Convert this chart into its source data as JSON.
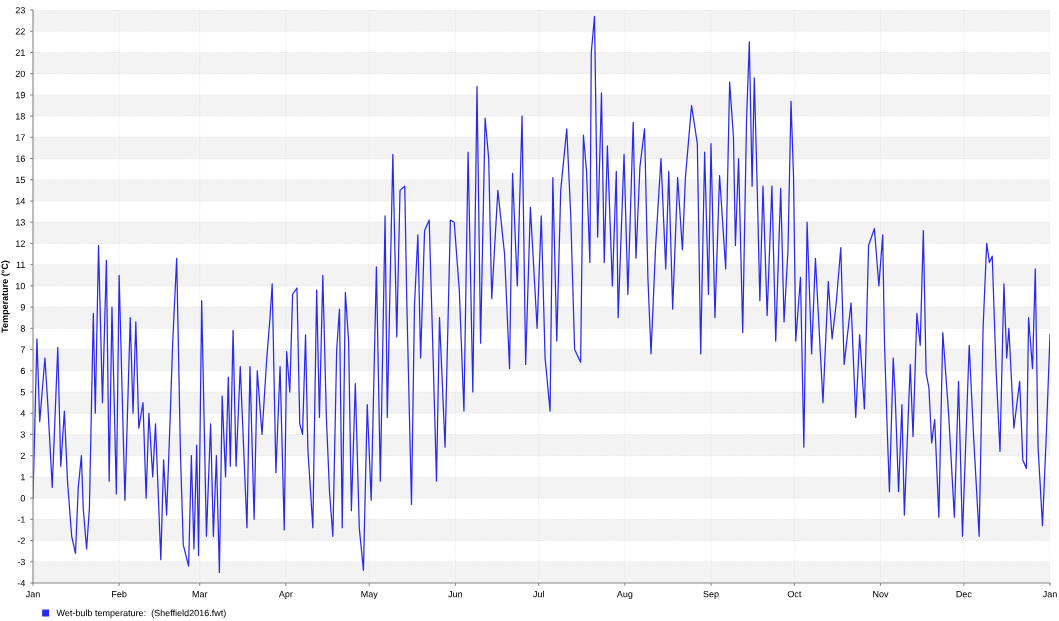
{
  "chart_data": {
    "type": "line",
    "ylabel": "Temperature (°C)",
    "xlim": [
      "2016-01-01",
      "2017-01-01"
    ],
    "xticks": [
      {
        "value": "2016-01-01",
        "label": "Jan"
      },
      {
        "value": "2016-02-01",
        "label": "Feb"
      },
      {
        "value": "2016-03-01",
        "label": "Mar"
      },
      {
        "value": "2016-04-01",
        "label": "Apr"
      },
      {
        "value": "2016-05-01",
        "label": "May"
      },
      {
        "value": "2016-06-01",
        "label": "Jun"
      },
      {
        "value": "2016-07-01",
        "label": "Jul"
      },
      {
        "value": "2016-08-01",
        "label": "Aug"
      },
      {
        "value": "2016-09-01",
        "label": "Sep"
      },
      {
        "value": "2016-10-01",
        "label": "Oct"
      },
      {
        "value": "2016-11-01",
        "label": "Nov"
      },
      {
        "value": "2016-12-01",
        "label": "Dec"
      },
      {
        "value": "2017-01-01",
        "label": "Jan"
      }
    ],
    "ylim": [
      -4,
      23
    ],
    "yticks": [
      -4,
      -3,
      -2,
      -1,
      0,
      1,
      2,
      3,
      4,
      5,
      6,
      7,
      8,
      9,
      10,
      11,
      12,
      13,
      14,
      15,
      16,
      17,
      18,
      19,
      20,
      21,
      22,
      23
    ],
    "grid": true,
    "legend": "bottom",
    "marker": "none",
    "line_style": "solid",
    "series": [
      {
        "name": "Wet-bulb temperature:  (Sheffield2016.fwt)",
        "color": "#2a2aee",
        "x": [
          "2016-01-01T00:00",
          "2016-01-02T10:00",
          "2016-01-03T10:00",
          "2016-01-05T07:00",
          "2016-01-06T07:00",
          "2016-01-07T22:00",
          "2016-01-09T22:00",
          "2016-01-11T00:00",
          "2016-01-12T07:00",
          "2016-01-13T10:00",
          "2016-01-14T22:00",
          "2016-01-16T07:00",
          "2016-01-17T07:00",
          "2016-01-18T10:00",
          "2016-01-19T02:00",
          "2016-01-20T07:00",
          "2016-01-21T07:00",
          "2016-01-22T17:00",
          "2016-01-23T10:00",
          "2016-01-24T14:00",
          "2016-01-26T00:00",
          "2016-01-27T10:00",
          "2016-01-28T10:00",
          "2016-01-29T10:00",
          "2016-01-31T00:00",
          "2016-02-01T00:00",
          "2016-02-03T02:00",
          "2016-02-05T00:00",
          "2016-02-06T00:00",
          "2016-02-07T00:00",
          "2016-02-08T02:00",
          "2016-02-09T14:00",
          "2016-02-10T17:00",
          "2016-02-11T17:00",
          "2016-02-13T02:00",
          "2016-02-14T02:00",
          "2016-02-16T00:00",
          "2016-02-17T00:00",
          "2016-02-18T02:00",
          "2016-02-19T07:00",
          "2016-02-20T07:00",
          "2016-02-21T17:00",
          "2016-02-23T02:00",
          "2016-02-24T02:00",
          "2016-02-26T00:00",
          "2016-02-27T00:00",
          "2016-02-27T22:00",
          "2016-02-28T22:00",
          "2016-02-29T14:00",
          "2016-03-01T17:00",
          "2016-03-03T10:00",
          "2016-03-04T22:00",
          "2016-03-05T22:00",
          "2016-03-07T00:00",
          "2016-03-08T02:00",
          "2016-03-09T02:00",
          "2016-03-10T07:00",
          "2016-03-11T07:00",
          "2016-03-12T00:00",
          "2016-03-13T00:00",
          "2016-03-14T02:00",
          "2016-03-15T14:00",
          "2016-03-18T00:00",
          "2016-03-19T02:00",
          "2016-03-20T14:00",
          "2016-03-21T17:00",
          "2016-03-23T10:00",
          "2016-03-25T02:00",
          "2016-03-26T07:00",
          "2016-03-27T02:00",
          "2016-03-28T10:00",
          "2016-03-29T22:00",
          "2016-03-31T10:00",
          "2016-04-01T07:00",
          "2016-04-02T10:00",
          "2016-04-03T10:00",
          "2016-04-05T00:00",
          "2016-04-06T00:00",
          "2016-04-07T00:00",
          "2016-04-08T02:00",
          "2016-04-08T22:00",
          "2016-04-10T17:00",
          "2016-04-12T02:00",
          "2016-04-13T02:00",
          "2016-04-14T07:00",
          "2016-04-15T14:00",
          "2016-04-16T17:00",
          "2016-04-17T22:00",
          "2016-04-19T07:00",
          "2016-04-20T07:00",
          "2016-04-21T07:00",
          "2016-04-22T10:00",
          "2016-04-23T14:00",
          "2016-04-24T14:00",
          "2016-04-26T00:00",
          "2016-04-27T10:00",
          "2016-04-28T22:00",
          "2016-04-30T07:00",
          "2016-05-01T17:00",
          "2016-05-03T14:00",
          "2016-05-05T00:00",
          "2016-05-06T17:00",
          "2016-05-07T12:00",
          "2016-05-09T12:00",
          "2016-05-10T22:00",
          "2016-05-12T02:00",
          "2016-05-13T19:00",
          "2016-05-14T12:00",
          "2016-05-16T05:00",
          "2016-05-17T07:00",
          "2016-05-18T12:00",
          "2016-05-19T12:00",
          "2016-05-20T22:00",
          "2016-05-22T14:00",
          "2016-05-24T00:00",
          "2016-05-25T05:00",
          "2016-05-26T07:00",
          "2016-05-28T07:00",
          "2016-05-30T05:00",
          "2016-05-31T14:00",
          "2016-06-02T10:00",
          "2016-06-04T02:00",
          "2016-06-05T14:00",
          "2016-06-07T07:00",
          "2016-06-08T19:00",
          "2016-06-10T02:00",
          "2016-06-11T17:00",
          "2016-06-13T00:00",
          "2016-06-14T02:00",
          "2016-06-16T07:00",
          "2016-06-18T17:00",
          "2016-06-20T12:00",
          "2016-06-21T14:00",
          "2016-06-23T07:00",
          "2016-06-25T00:00",
          "2016-06-26T07:00",
          "2016-06-28T00:00",
          "2016-06-30T10:00",
          "2016-07-01T22:00",
          "2016-07-03T07:00",
          "2016-07-05T02:00",
          "2016-07-06T02:00",
          "2016-07-07T12:00",
          "2016-07-08T22:00",
          "2016-07-11T02:00",
          "2016-07-12T12:00",
          "2016-07-13T22:00",
          "2016-07-16T02:00",
          "2016-07-17T02:00",
          "2016-07-18T05:00",
          "2016-07-19T10:00",
          "2016-07-19T22:00",
          "2016-07-21T02:00",
          "2016-07-22T05:00",
          "2016-07-23T14:00",
          "2016-07-24T14:00",
          "2016-07-25T17:00",
          "2016-07-27T12:00",
          "2016-07-28T22:00",
          "2016-07-29T14:00",
          "2016-07-31T17:00",
          "2016-08-02T02:00",
          "2016-08-04T00:00",
          "2016-08-05T00:00",
          "2016-08-06T10:00",
          "2016-08-08T02:00",
          "2016-08-09T07:00",
          "2016-08-10T10:00",
          "2016-08-12T02:00",
          "2016-08-14T00:00",
          "2016-08-15T17:00",
          "2016-08-16T19:00",
          "2016-08-18T05:00",
          "2016-08-20T00:00",
          "2016-08-21T17:00",
          "2016-08-22T19:00",
          "2016-08-25T00:00",
          "2016-08-27T02:00",
          "2016-08-28T07:00",
          "2016-08-29T17:00",
          "2016-08-31T02:00",
          "2016-09-01T00:00",
          "2016-09-02T10:00",
          "2016-09-04T02:00",
          "2016-09-06T07:00",
          "2016-09-07T17:00",
          "2016-09-09T02:00",
          "2016-09-09T19:00",
          "2016-09-10T22:00",
          "2016-09-12T10:00",
          "2016-09-13T19:00",
          "2016-09-14T19:00",
          "2016-09-15T19:00",
          "2016-09-16T14:00",
          "2016-09-17T14:00",
          "2016-09-18T14:00",
          "2016-09-19T17:00",
          "2016-09-21T05:00",
          "2016-09-22T22:00",
          "2016-09-24T07:00",
          "2016-09-26T02:00",
          "2016-09-27T07:00",
          "2016-09-28T17:00",
          "2016-09-29T19:00",
          "2016-09-30T17:00",
          "2016-10-01T12:00",
          "2016-10-03T05:00",
          "2016-10-04T10:00",
          "2016-10-05T14:00",
          "2016-10-07T05:00",
          "2016-10-08T14:00",
          "2016-10-11T07:00",
          "2016-10-13T05:00",
          "2016-10-14T14:00",
          "2016-10-16T00:00",
          "2016-10-17T17:00",
          "2016-10-18T22:00",
          "2016-10-21T10:00",
          "2016-10-23T02:00",
          "2016-10-24T12:00",
          "2016-10-26T05:00",
          "2016-10-27T17:00",
          "2016-10-29T19:00",
          "2016-10-31T10:00",
          "2016-11-01T19:00",
          "2016-11-02T10:00",
          "2016-11-03T12:00",
          "2016-11-04T05:00",
          "2016-11-05T14:00",
          "2016-11-06T07:00",
          "2016-11-07T12:00",
          "2016-11-08T17:00",
          "2016-11-09T14:00",
          "2016-11-11T17:00",
          "2016-11-12T17:00",
          "2016-11-14T02:00",
          "2016-11-15T07:00",
          "2016-11-16T10:00",
          "2016-11-17T10:00",
          "2016-11-18T10:00",
          "2016-11-19T10:00",
          "2016-11-20T12:00",
          "2016-11-22T00:00",
          "2016-11-23T10:00",
          "2016-11-25T12:00",
          "2016-11-27T14:00",
          "2016-11-29T02:00",
          "2016-11-30T12:00",
          "2016-12-02T22:00",
          "2016-12-04T12:00",
          "2016-12-06T12:00",
          "2016-12-07T22:00",
          "2016-12-09T05:00",
          "2016-12-10T05:00",
          "2016-12-11T05:00",
          "2016-12-12T14:00",
          "2016-12-14T00:00",
          "2016-12-15T10:00",
          "2016-12-16T10:00",
          "2016-12-17T05:00",
          "2016-12-19T00:00",
          "2016-12-21T02:00",
          "2016-12-22T05:00",
          "2016-12-23T12:00",
          "2016-12-24T07:00",
          "2016-12-25T17:00",
          "2016-12-26T17:00",
          "2016-12-27T17:00",
          "2016-12-29T07:00",
          "2016-12-30T17:00",
          "2017-01-01T00:00"
        ],
        "values": [
          0,
          7.5,
          3.6,
          6.6,
          4.5,
          0.5,
          7.1,
          1.5,
          4.1,
          0.8,
          -1.8,
          -2.6,
          0.5,
          2.0,
          -0.5,
          -2.4,
          -0.5,
          8.7,
          4,
          11.9,
          4.5,
          11.2,
          0.8,
          9,
          0.2,
          10.5,
          -0.1,
          8.5,
          4,
          8.3,
          3.3,
          4.5,
          0,
          4,
          1,
          3.5,
          -2.9,
          1.8,
          -0.8,
          3.5,
          7.4,
          11.3,
          2,
          -2.2,
          -3.2,
          2,
          -2.4,
          2.5,
          -2.7,
          9.3,
          -1.8,
          3.5,
          -1.8,
          2,
          -3.5,
          4.8,
          1,
          5.7,
          1.5,
          7.9,
          1.5,
          6.2,
          -1.4,
          6.2,
          -1,
          6,
          3,
          6.5,
          8.5,
          10.1,
          1.2,
          6.2,
          -1.5,
          6.9,
          5,
          9.6,
          9.9,
          3.5,
          3,
          7.7,
          2.3,
          -1.4,
          9.8,
          3.8,
          10.5,
          3.8,
          0.3,
          -1.8,
          7,
          8.9,
          -1.4,
          9.7,
          7.4,
          -0.6,
          5.4,
          -1.4,
          -3.4,
          4.4,
          -0.1,
          10.9,
          0.8,
          13.3,
          3.8,
          16.2,
          7.6,
          14.5,
          14.7,
          9.4,
          -0.3,
          9.1,
          12.4,
          6.6,
          12.6,
          13.1,
          6.6,
          0.8,
          8.5,
          2.4,
          13.1,
          13,
          9.8,
          4.1,
          16.3,
          5,
          19.4,
          7.3,
          17.9,
          16,
          9.4,
          14.5,
          11.5,
          6.1,
          15.3,
          10,
          18,
          6.3,
          13.7,
          8,
          13.3,
          6.6,
          4.1,
          15.1,
          7.4,
          14.5,
          17.4,
          13.4,
          7,
          6.4,
          17.1,
          15.4,
          11.1,
          21,
          22.7,
          12.3,
          19.1,
          11.1,
          16.6,
          10,
          15.4,
          8.5,
          16.2,
          9.6,
          17.7,
          11.3,
          15.6,
          17.4,
          10.4,
          6.8,
          11.9,
          16,
          10.8,
          15.4,
          8.9,
          15.1,
          11.7,
          15.1,
          18.5,
          16.7,
          6.8,
          16.3,
          9.6,
          16.7,
          8.5,
          15.2,
          10.8,
          19.6,
          17,
          11.9,
          16,
          7.8,
          17.8,
          21.5,
          14.7,
          19.8,
          14.9,
          9.3,
          14.7,
          8.6,
          14.7,
          7.4,
          14.6,
          8.3,
          11.7,
          18.7,
          15.1,
          7.4,
          10.4,
          2.4,
          13,
          6.8,
          11.3,
          4.5,
          10.2,
          7.5,
          9.1,
          11.8,
          6.3,
          9.2,
          3.8,
          7.7,
          4.2,
          11.9,
          12.7,
          10,
          12.4,
          7.4,
          2.9,
          0.3,
          6.6,
          4.8,
          0.3,
          4.4,
          -0.8,
          6.3,
          2.9,
          8.7,
          7.2,
          12.6,
          5.9,
          5.2,
          2.6,
          3.7,
          -0.9,
          7.8,
          4,
          -0.9,
          5.5,
          -1.8,
          7.2,
          2.9,
          -1.8,
          8,
          12,
          11.1,
          11.4,
          6.1,
          2.2,
          10.1,
          6.6,
          8,
          3.3,
          5.5,
          1.8,
          1.4,
          8.5,
          6.1,
          10.8,
          2.4,
          -1.3,
          3.1,
          7.7
        ]
      }
    ]
  }
}
